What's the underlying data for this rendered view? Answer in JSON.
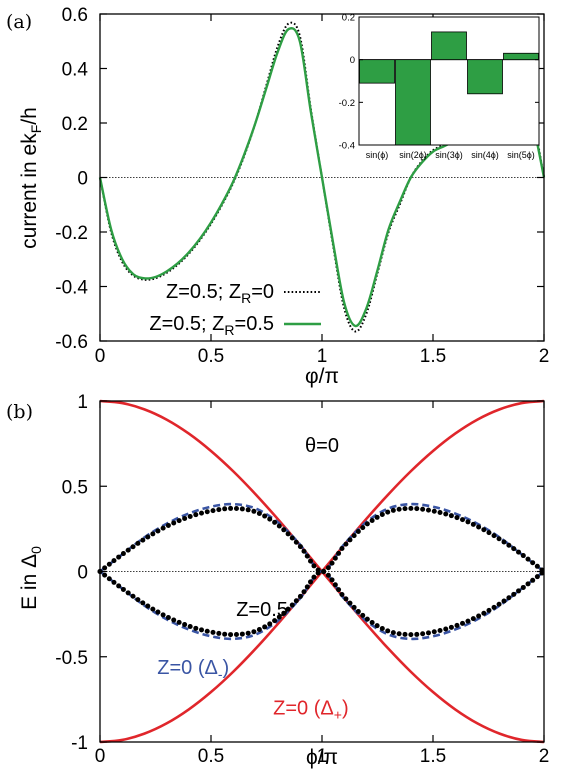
{
  "chart_data": [
    {
      "panel": "(a)",
      "type": "line",
      "xlabel": "φ/π",
      "ylabel_main": "current in ek",
      "ylabel_sub": "F",
      "ylabel_tail": "/h",
      "xlim": [
        0,
        2
      ],
      "ylim": [
        -0.6,
        0.6
      ],
      "xticks": [
        "0",
        "0.5",
        "1",
        "1.5",
        "2"
      ],
      "xtick_values": [
        0,
        0.5,
        1,
        1.5,
        2
      ],
      "yticks": [
        "-0.6",
        "-0.4",
        "-0.2",
        "0",
        "0.2",
        "0.4",
        "0.6"
      ],
      "ytick_values": [
        -0.6,
        -0.4,
        -0.2,
        0,
        0.2,
        0.4,
        0.6
      ],
      "legend_position": "bottom-right",
      "series": [
        {
          "legend_main": "Z=0.5; Z",
          "legend_sub": "R",
          "legend_tail": "=0",
          "style": "dotted",
          "color": "#000000",
          "x": [
            0,
            0.05,
            0.1,
            0.15,
            0.2,
            0.25,
            0.3,
            0.35,
            0.4,
            0.45,
            0.5,
            0.55,
            0.6,
            0.65,
            0.7,
            0.75,
            0.8,
            0.85,
            0.9,
            0.95,
            1.0,
            1.05,
            1.1,
            1.15,
            1.2,
            1.25,
            1.3,
            1.35,
            1.4,
            1.45,
            1.5,
            1.55,
            1.6,
            1.65,
            1.7,
            1.75,
            1.8,
            1.85,
            1.9,
            1.95,
            2.0
          ],
          "y": [
            0,
            -0.2,
            -0.31,
            -0.36,
            -0.375,
            -0.37,
            -0.35,
            -0.32,
            -0.28,
            -0.23,
            -0.17,
            -0.1,
            -0.02,
            0.08,
            0.2,
            0.34,
            0.48,
            0.565,
            0.52,
            0.25,
            0.0,
            -0.25,
            -0.48,
            -0.565,
            -0.5,
            -0.35,
            -0.2,
            -0.1,
            0.0,
            0.06,
            0.1,
            0.12,
            0.14,
            0.16,
            0.19,
            0.22,
            0.27,
            0.32,
            0.37,
            0.22,
            0
          ]
        },
        {
          "legend_main": "Z=0.5; Z",
          "legend_sub": "R",
          "legend_tail": "=0.5",
          "style": "solid",
          "color": "#2e9e44",
          "x": [
            0,
            0.05,
            0.1,
            0.15,
            0.2,
            0.25,
            0.3,
            0.35,
            0.4,
            0.45,
            0.5,
            0.55,
            0.6,
            0.65,
            0.7,
            0.75,
            0.8,
            0.85,
            0.9,
            0.95,
            1.0,
            1.05,
            1.1,
            1.15,
            1.2,
            1.25,
            1.3,
            1.35,
            1.4,
            1.45,
            1.5,
            1.55,
            1.6,
            1.65,
            1.7,
            1.75,
            1.8,
            1.85,
            1.9,
            1.95,
            2.0
          ],
          "y": [
            0,
            -0.19,
            -0.3,
            -0.355,
            -0.37,
            -0.365,
            -0.345,
            -0.315,
            -0.275,
            -0.225,
            -0.165,
            -0.095,
            -0.015,
            0.085,
            0.2,
            0.33,
            0.46,
            0.545,
            0.5,
            0.24,
            0.0,
            -0.24,
            -0.46,
            -0.545,
            -0.48,
            -0.34,
            -0.19,
            -0.09,
            0.0,
            0.055,
            0.095,
            0.115,
            0.135,
            0.155,
            0.18,
            0.21,
            0.25,
            0.3,
            0.34,
            0.2,
            0
          ]
        }
      ],
      "inset": {
        "type": "bar",
        "categories": [
          "sin(ϕ)",
          "sin(2ϕ)",
          "sin(3ϕ)",
          "sin(4ϕ)",
          "sin(5ϕ)"
        ],
        "values": [
          -0.11,
          -0.4,
          0.13,
          -0.16,
          0.03
        ],
        "ylim": [
          -0.4,
          0.2
        ],
        "yticks": [
          "0.2",
          "0",
          "-0.2",
          "-0.4"
        ],
        "ytick_values": [
          0.2,
          0,
          -0.2,
          -0.4
        ],
        "bar_color": "#2e9e44"
      }
    },
    {
      "panel": "(b)",
      "type": "line",
      "xlabel": "ϕ/π",
      "ylabel_main": "E in Δ",
      "ylabel_sub": "0",
      "xlim": [
        0,
        2
      ],
      "ylim": [
        -1,
        1
      ],
      "xticks": [
        "0",
        "0.5",
        "1",
        "1.5",
        "2"
      ],
      "xtick_values": [
        0,
        0.5,
        1,
        1.5,
        2
      ],
      "yticks": [
        "-1",
        "-0.5",
        "0",
        "0.5",
        "1"
      ],
      "ytick_values": [
        -1,
        -0.5,
        0,
        0.5,
        1
      ],
      "annotations": [
        {
          "text": "θ=0",
          "x": 1.0,
          "y": 0.7,
          "color": "#000000"
        },
        {
          "text": "Z=0.5",
          "x": 0.73,
          "y": -0.26,
          "color": "#000000"
        },
        {
          "text_main": "Z=0 (Δ",
          "text_sub": "-",
          "text_tail": ")",
          "x": 0.42,
          "y": -0.6,
          "color": "#3a55a4"
        },
        {
          "text_main": "Z=0 (Δ",
          "text_sub": "+",
          "text_tail": ")",
          "x": 0.95,
          "y": -0.84,
          "color": "#e0262b"
        }
      ],
      "series": [
        {
          "label": "Z=0 (Δ+)",
          "style": "solid",
          "color": "#e0262b",
          "x": [
            0,
            0.1,
            0.2,
            0.3,
            0.4,
            0.5,
            0.6,
            0.7,
            0.8,
            0.9,
            1.0,
            1.1,
            1.2,
            1.3,
            1.4,
            1.5,
            1.6,
            1.7,
            1.8,
            1.9,
            2.0
          ],
          "y_upper": [
            1,
            0.988,
            0.951,
            0.891,
            0.809,
            0.707,
            0.588,
            0.454,
            0.309,
            0.156,
            0,
            -0.156,
            -0.309,
            -0.454,
            -0.588,
            -0.707,
            -0.809,
            -0.891,
            -0.951,
            -0.988,
            -1
          ],
          "mirror": true
        },
        {
          "label": "Z=0 (Δ-)",
          "style": "dashed",
          "color": "#3a55a4",
          "x": [
            0,
            0.1,
            0.2,
            0.3,
            0.4,
            0.5,
            0.6,
            0.7,
            0.8,
            0.9,
            1.0,
            1.1,
            1.2,
            1.3,
            1.4,
            1.5,
            1.6,
            1.7,
            1.8,
            1.9,
            2.0
          ],
          "y_upper": [
            0,
            0.1,
            0.2,
            0.28,
            0.34,
            0.38,
            0.395,
            0.37,
            0.29,
            0.16,
            0,
            0.16,
            0.29,
            0.37,
            0.395,
            0.38,
            0.34,
            0.28,
            0.2,
            0.1,
            0
          ],
          "mirror": true
        },
        {
          "label": "Z=0.5",
          "style": "dots",
          "color": "#000000",
          "x": [
            0,
            0.1,
            0.2,
            0.3,
            0.4,
            0.5,
            0.6,
            0.7,
            0.8,
            0.9,
            1.0,
            1.1,
            1.2,
            1.3,
            1.4,
            1.5,
            1.6,
            1.7,
            1.8,
            1.9,
            2.0
          ],
          "y_upper": [
            0,
            0.1,
            0.19,
            0.265,
            0.32,
            0.355,
            0.37,
            0.35,
            0.275,
            0.15,
            0,
            0.15,
            0.275,
            0.35,
            0.37,
            0.355,
            0.32,
            0.265,
            0.19,
            0.1,
            0
          ],
          "mirror": true
        }
      ]
    }
  ]
}
